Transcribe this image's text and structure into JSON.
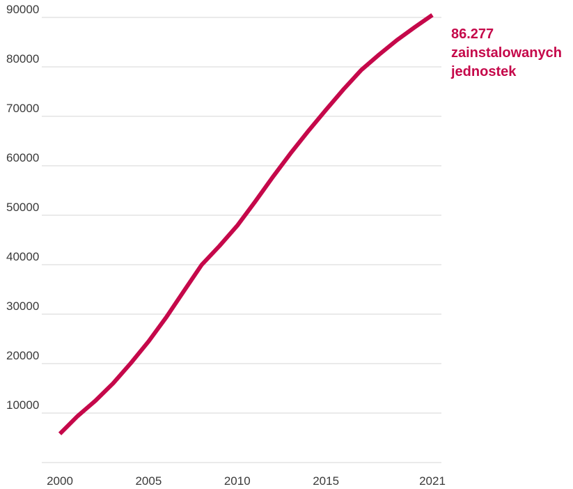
{
  "chart_data": {
    "type": "line",
    "title": "",
    "xlabel": "",
    "ylabel": "",
    "xlim": [
      2000,
      2021
    ],
    "ylim": [
      0,
      90000
    ],
    "grid": true,
    "colors": {
      "line": "#c5084a",
      "grid": "#d4d4d4",
      "text": "#3a3a3a"
    },
    "x_ticks": [
      2000,
      2005,
      2010,
      2015,
      2021
    ],
    "y_ticks": [
      10000,
      20000,
      30000,
      40000,
      50000,
      60000,
      70000,
      80000,
      90000
    ],
    "series": [
      {
        "x": [
          2000,
          2001,
          2002,
          2003,
          2004,
          2005,
          2006,
          2007,
          2008,
          2009,
          2010,
          2011,
          2012,
          2013,
          2014,
          2015,
          2016,
          2017,
          2018,
          2019,
          2020,
          2021
        ],
        "values": [
          5800,
          9400,
          12500,
          16000,
          20100,
          24500,
          29400,
          34700,
          40000,
          43800,
          47900,
          52700,
          57700,
          62500,
          67000,
          71300,
          75500,
          79400,
          82500,
          85400,
          88000,
          90500
        ]
      }
    ],
    "annotation": {
      "lines": [
        "86.277",
        "zainstalowanych",
        "jednostek"
      ],
      "color": "#c5084a"
    }
  }
}
